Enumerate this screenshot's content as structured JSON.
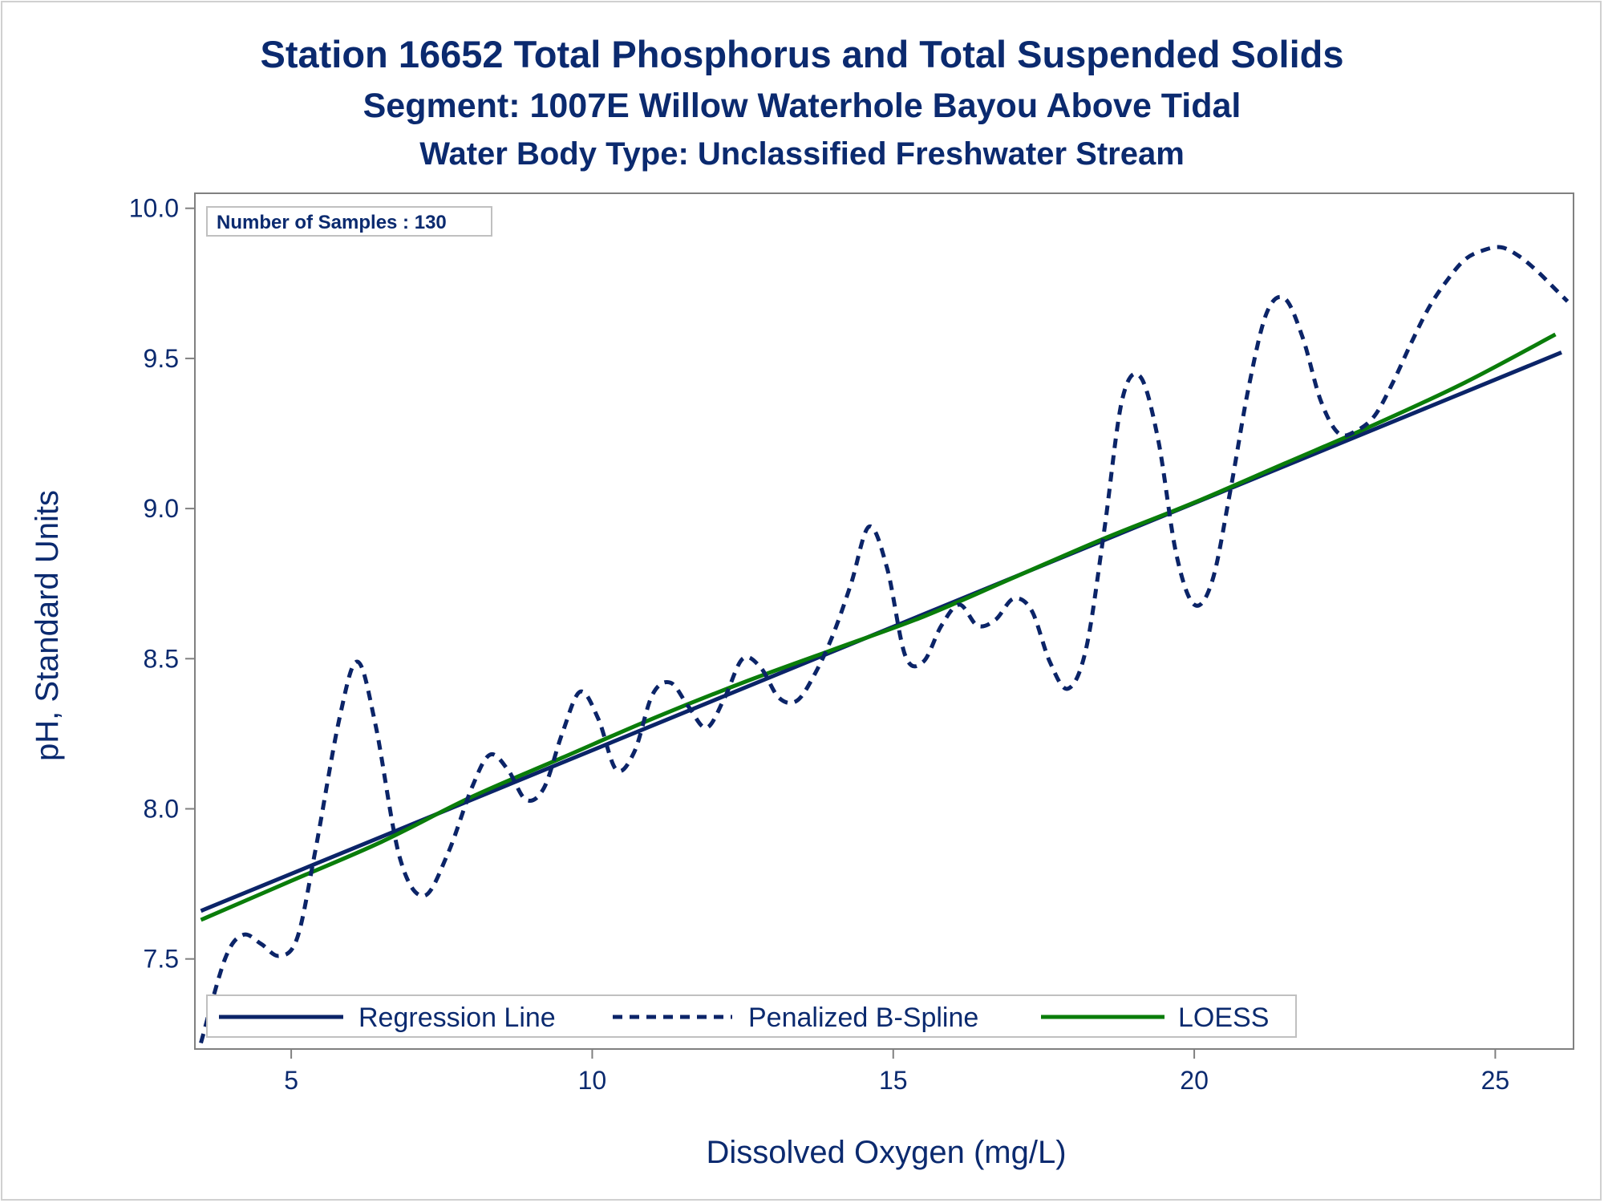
{
  "titles": {
    "line1": "Station 16652  Total Phosphorus and Total Suspended Solids",
    "line2": "Segment: 1007E  Willow Waterhole Bayou Above Tidal",
    "line3": "Water Body Type: Unclassified Freshwater Stream"
  },
  "annotation": "Number of Samples : 130",
  "colors": {
    "title": "#0b2a6f",
    "regression": "#0b2468",
    "spline": "#0b2468",
    "loess": "#0a7d0a",
    "axis": "#808080",
    "text": "#0b2a6f"
  },
  "chart_data": {
    "type": "line",
    "title": "Station 16652  Total Phosphorus and Total Suspended Solids",
    "xlabel": "Dissolved Oxygen (mg/L)",
    "ylabel": "pH, Standard Units",
    "xlim": [
      3.4,
      26.3
    ],
    "ylim": [
      7.2,
      10.05
    ],
    "xticks": [
      5,
      10,
      15,
      20,
      25
    ],
    "xtick_labels": [
      "5",
      "10",
      "15",
      "20",
      "25"
    ],
    "yticks": [
      7.5,
      8.0,
      8.5,
      9.0,
      9.5,
      10.0
    ],
    "ytick_labels": [
      "7.5",
      "8.0",
      "8.5",
      "9.0",
      "9.5",
      "10.0"
    ],
    "grid": false,
    "legend_position": "bottom-inside",
    "series": [
      {
        "name": "Regression Line",
        "style": "solid",
        "x": [
          3.5,
          26.1
        ],
        "y": [
          7.66,
          9.52
        ]
      },
      {
        "name": "Penalized B-Spline",
        "style": "dashed",
        "x": [
          3.5,
          3.9,
          4.2,
          4.5,
          4.8,
          5.1,
          5.4,
          5.8,
          6.1,
          6.4,
          6.8,
          7.2,
          7.6,
          8.0,
          8.3,
          8.6,
          8.9,
          9.2,
          9.5,
          9.8,
          10.1,
          10.4,
          10.7,
          11.0,
          11.3,
          11.6,
          11.9,
          12.2,
          12.5,
          12.8,
          13.1,
          13.4,
          13.7,
          14.0,
          14.3,
          14.6,
          14.9,
          15.2,
          15.5,
          15.8,
          16.1,
          16.4,
          16.7,
          17.0,
          17.3,
          17.6,
          17.9,
          18.2,
          18.5,
          18.8,
          19.1,
          19.4,
          19.7,
          20.0,
          20.3,
          20.6,
          20.9,
          21.2,
          21.5,
          21.8,
          22.1,
          22.4,
          22.7,
          23.0,
          23.3,
          23.6,
          23.9,
          24.2,
          24.5,
          24.8,
          25.1,
          25.4,
          25.7,
          26.0,
          26.2
        ],
        "y": [
          7.22,
          7.5,
          7.58,
          7.55,
          7.51,
          7.57,
          7.86,
          8.3,
          8.49,
          8.28,
          7.84,
          7.71,
          7.85,
          8.07,
          8.18,
          8.13,
          8.03,
          8.07,
          8.25,
          8.39,
          8.3,
          8.13,
          8.19,
          8.38,
          8.42,
          8.34,
          8.27,
          8.37,
          8.5,
          8.47,
          8.37,
          8.36,
          8.45,
          8.58,
          8.75,
          8.94,
          8.8,
          8.51,
          8.49,
          8.61,
          8.68,
          8.61,
          8.63,
          8.7,
          8.66,
          8.49,
          8.4,
          8.53,
          8.92,
          9.36,
          9.44,
          9.23,
          8.85,
          8.68,
          8.76,
          9.06,
          9.4,
          9.65,
          9.7,
          9.57,
          9.36,
          9.25,
          9.26,
          9.31,
          9.42,
          9.55,
          9.67,
          9.76,
          9.83,
          9.86,
          9.87,
          9.84,
          9.79,
          9.73,
          9.69
        ]
      },
      {
        "name": "LOESS",
        "style": "solid",
        "x": [
          3.5,
          5.0,
          6.5,
          8.0,
          9.5,
          11.0,
          12.5,
          14.0,
          15.5,
          17.0,
          18.5,
          20.0,
          21.5,
          23.0,
          24.5,
          26.0
        ],
        "y": [
          7.63,
          7.76,
          7.89,
          8.04,
          8.17,
          8.3,
          8.42,
          8.53,
          8.64,
          8.77,
          8.9,
          9.02,
          9.15,
          9.28,
          9.42,
          9.58
        ]
      }
    ]
  }
}
